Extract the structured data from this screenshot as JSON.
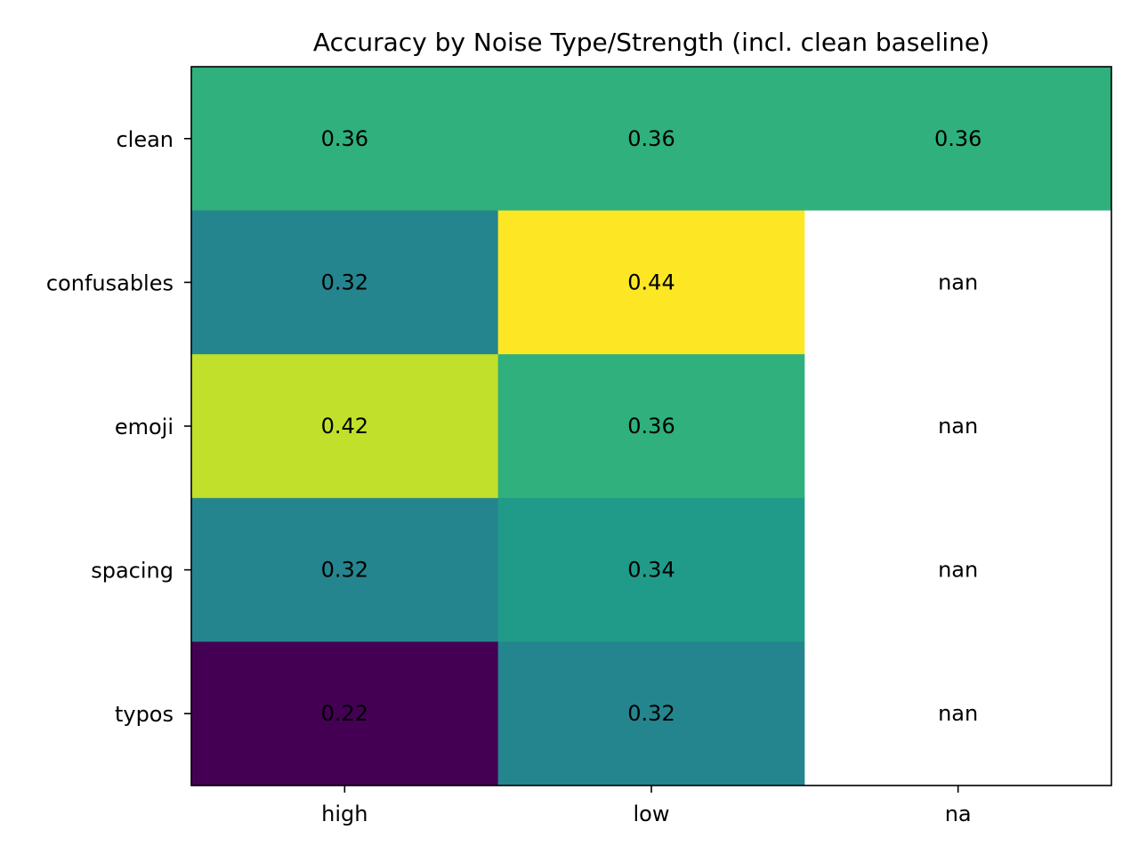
{
  "chart_data": {
    "type": "heatmap",
    "title": "Accuracy by Noise Type/Strength (incl. clean baseline)",
    "xlabel": "",
    "ylabel": "",
    "x_categories": [
      "high",
      "low",
      "na"
    ],
    "y_categories": [
      "clean",
      "confusables",
      "emoji",
      "spacing",
      "typos"
    ],
    "values": [
      [
        0.36,
        0.36,
        0.36
      ],
      [
        0.32,
        0.44,
        null
      ],
      [
        0.42,
        0.36,
        null
      ],
      [
        0.32,
        0.34,
        null
      ],
      [
        0.22,
        0.32,
        null
      ]
    ],
    "cell_labels": [
      [
        "0.36",
        "0.36",
        "0.36"
      ],
      [
        "0.32",
        "0.44",
        "nan"
      ],
      [
        "0.42",
        "0.36",
        "nan"
      ],
      [
        "0.32",
        "0.34",
        "nan"
      ],
      [
        "0.22",
        "0.32",
        "nan"
      ]
    ],
    "colormap": "viridis",
    "vmin": 0.22,
    "vmax": 0.44,
    "missing_color": "#ffffff",
    "colorbar": false
  }
}
